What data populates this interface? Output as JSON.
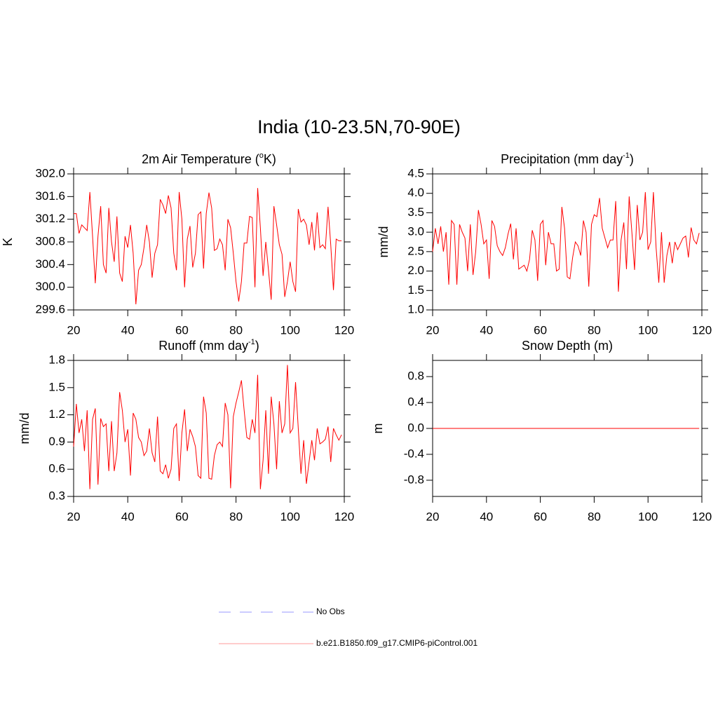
{
  "title": "India (10-23.5N,70-90E)",
  "legend": [
    {
      "name": "No Obs",
      "color": "#9999ff",
      "dash": true
    },
    {
      "name": "b.e21.B1850.f09_g17.CMIP6-piControl.001",
      "color": "#ff9999",
      "dash": false
    }
  ],
  "chart_data": [
    {
      "type": "line",
      "title": [
        "2m Air Temperature (",
        "o",
        "K)"
      ],
      "ylabel": "K",
      "color": "#ff0000",
      "xlim": [
        20,
        120
      ],
      "xticks": [
        20,
        40,
        60,
        80,
        100,
        120
      ],
      "ylim": [
        299.6,
        302.0
      ],
      "yticks": [
        {
          "value": 302.0,
          "label": "302.0"
        },
        301.6,
        301.2,
        300.8,
        300.4,
        {
          "value": 300.0,
          "label": "300.0"
        },
        299.6
      ],
      "x": [
        20,
        21,
        22,
        23,
        24,
        25,
        26,
        27,
        28,
        29,
        30,
        31,
        32,
        33,
        34,
        35,
        36,
        37,
        38,
        39,
        40,
        41,
        42,
        43,
        44,
        45,
        46,
        47,
        48,
        49,
        50,
        51,
        52,
        53,
        54,
        55,
        56,
        57,
        58,
        59,
        60,
        61,
        62,
        63,
        64,
        65,
        66,
        67,
        68,
        69,
        70,
        71,
        72,
        73,
        74,
        75,
        76,
        77,
        78,
        79,
        80,
        81,
        82,
        83,
        84,
        85,
        86,
        87,
        88,
        89,
        90,
        91,
        92,
        93,
        94,
        95,
        96,
        97,
        98,
        99,
        100,
        101,
        102,
        103,
        104,
        105,
        106,
        107,
        108,
        109,
        110,
        111,
        112,
        113,
        114,
        115,
        116,
        117,
        118,
        119
      ],
      "values": [
        301.3,
        301.3,
        300.95,
        301.1,
        301.05,
        301.0,
        301.68,
        300.9,
        300.07,
        300.9,
        301.43,
        300.4,
        300.25,
        301.4,
        300.8,
        300.45,
        301.25,
        300.25,
        300.1,
        300.9,
        300.7,
        301.1,
        300.6,
        299.7,
        300.3,
        300.4,
        300.7,
        301.1,
        300.8,
        300.17,
        300.6,
        300.75,
        301.55,
        301.45,
        301.3,
        301.62,
        301.4,
        300.6,
        300.3,
        301.68,
        301.2,
        300.0,
        300.85,
        301.08,
        300.35,
        300.6,
        301.28,
        301.33,
        300.33,
        301.3,
        301.67,
        301.4,
        300.65,
        300.68,
        300.85,
        300.75,
        300.3,
        301.2,
        301.05,
        300.6,
        300.1,
        299.75,
        300.1,
        300.78,
        300.78,
        301.25,
        301.23,
        300.0,
        301.75,
        301.05,
        300.2,
        300.8,
        300.3,
        299.78,
        301.43,
        301.1,
        300.75,
        300.58,
        299.83,
        300.1,
        300.45,
        300.1,
        299.92,
        301.38,
        301.15,
        301.2,
        301.1,
        300.75,
        301.15,
        300.65,
        301.32,
        300.7,
        300.75,
        300.68,
        301.42,
        300.75,
        299.95,
        300.85,
        300.82,
        300.82
      ]
    },
    {
      "type": "line",
      "title": [
        "Precipitation (mm day",
        "-1",
        ")"
      ],
      "ylabel": "mm/d",
      "color": "#ff0000",
      "xlim": [
        20,
        120
      ],
      "xticks": [
        20,
        40,
        60,
        80,
        100,
        120
      ],
      "ylim": [
        1.0,
        4.5
      ],
      "yticks": [
        4.5,
        {
          "value": 4.0,
          "label": "4.0"
        },
        3.5,
        {
          "value": 3.0,
          "label": "3.0"
        },
        2.5,
        {
          "value": 2.0,
          "label": "2.0"
        },
        1.5,
        {
          "value": 1.0,
          "label": "1.0"
        }
      ],
      "x": [
        20,
        21,
        22,
        23,
        24,
        25,
        26,
        27,
        28,
        29,
        30,
        31,
        32,
        33,
        34,
        35,
        36,
        37,
        38,
        39,
        40,
        41,
        42,
        43,
        44,
        45,
        46,
        47,
        48,
        49,
        50,
        51,
        52,
        53,
        54,
        55,
        56,
        57,
        58,
        59,
        60,
        61,
        62,
        63,
        64,
        65,
        66,
        67,
        68,
        69,
        70,
        71,
        72,
        73,
        74,
        75,
        76,
        77,
        78,
        79,
        80,
        81,
        82,
        83,
        84,
        85,
        86,
        87,
        88,
        89,
        90,
        91,
        92,
        93,
        94,
        95,
        96,
        97,
        98,
        99,
        100,
        101,
        102,
        103,
        104,
        105,
        106,
        107,
        108,
        109,
        110,
        111,
        112,
        113,
        114,
        115,
        116,
        117,
        118,
        119
      ],
      "values": [
        2.5,
        3.1,
        2.7,
        3.15,
        2.5,
        3.0,
        1.65,
        3.3,
        3.2,
        1.65,
        3.2,
        3.0,
        2.85,
        2.0,
        3.2,
        1.9,
        2.5,
        3.57,
        3.2,
        2.7,
        2.8,
        1.8,
        3.3,
        3.15,
        2.65,
        2.5,
        2.4,
        2.6,
        2.95,
        3.22,
        2.3,
        3.1,
        2.05,
        2.1,
        2.15,
        2.0,
        2.3,
        3.05,
        2.8,
        1.75,
        3.2,
        3.3,
        2.15,
        3.0,
        2.7,
        2.7,
        2.0,
        2.05,
        3.65,
        3.1,
        1.85,
        1.8,
        2.35,
        2.75,
        2.65,
        2.4,
        3.3,
        3.0,
        1.6,
        3.2,
        3.45,
        3.4,
        3.88,
        3.1,
        2.85,
        2.6,
        2.8,
        2.8,
        3.8,
        1.47,
        2.8,
        3.25,
        2.05,
        3.92,
        3.0,
        2.03,
        3.7,
        2.8,
        3.0,
        4.03,
        2.55,
        2.75,
        4.03,
        2.6,
        1.7,
        3.0,
        1.7,
        2.4,
        2.75,
        2.2,
        2.75,
        2.55,
        2.7,
        2.85,
        2.9,
        2.35,
        3.12,
        2.8,
        2.7,
        2.98
      ]
    },
    {
      "type": "line",
      "title": [
        "Runoff (mm day",
        "-1",
        ")"
      ],
      "ylabel": "mm/d",
      "color": "#ff0000",
      "xlim": [
        20,
        120
      ],
      "xticks": [
        20,
        40,
        60,
        80,
        100,
        120
      ],
      "ylim": [
        0.3,
        1.8
      ],
      "yticks": [
        1.8,
        1.5,
        1.2,
        0.9,
        0.6,
        0.3
      ],
      "x": [
        20,
        21,
        22,
        23,
        24,
        25,
        26,
        27,
        28,
        29,
        30,
        31,
        32,
        33,
        34,
        35,
        36,
        37,
        38,
        39,
        40,
        41,
        42,
        43,
        44,
        45,
        46,
        47,
        48,
        49,
        50,
        51,
        52,
        53,
        54,
        55,
        56,
        57,
        58,
        59,
        60,
        61,
        62,
        63,
        64,
        65,
        66,
        67,
        68,
        69,
        70,
        71,
        72,
        73,
        74,
        75,
        76,
        77,
        78,
        79,
        80,
        81,
        82,
        83,
        84,
        85,
        86,
        87,
        88,
        89,
        90,
        91,
        92,
        93,
        94,
        95,
        96,
        97,
        98,
        99,
        100,
        101,
        102,
        103,
        104,
        105,
        106,
        107,
        108,
        109,
        110,
        111,
        112,
        113,
        114,
        115,
        116,
        117,
        118,
        119
      ],
      "values": [
        0.85,
        1.32,
        1.0,
        1.15,
        0.8,
        1.25,
        0.38,
        1.15,
        1.27,
        0.43,
        1.16,
        1.07,
        1.1,
        0.58,
        1.13,
        0.58,
        0.78,
        1.45,
        1.25,
        0.9,
        1.04,
        0.53,
        1.22,
        1.15,
        0.95,
        0.9,
        0.75,
        0.8,
        1.05,
        0.78,
        0.68,
        1.18,
        0.58,
        0.55,
        0.65,
        0.5,
        0.6,
        1.05,
        1.1,
        0.47,
        1.0,
        1.26,
        0.8,
        1.04,
        0.96,
        0.85,
        0.53,
        0.5,
        1.4,
        1.22,
        0.5,
        0.49,
        0.75,
        0.87,
        0.9,
        0.85,
        1.33,
        1.2,
        0.39,
        1.18,
        1.33,
        1.45,
        1.58,
        1.25,
        0.95,
        0.93,
        1.15,
        1.0,
        1.64,
        0.38,
        0.7,
        1.25,
        0.55,
        1.4,
        1.1,
        0.6,
        1.35,
        1.0,
        1.1,
        1.75,
        1.0,
        1.05,
        1.56,
        1.05,
        0.55,
        0.92,
        0.44,
        0.68,
        0.92,
        0.7,
        1.05,
        0.88,
        0.9,
        0.93,
        1.07,
        0.68,
        1.05,
        0.98,
        0.92,
        0.98
      ]
    },
    {
      "type": "line",
      "title": [
        "Snow Depth (m)"
      ],
      "ylabel": "m",
      "color": "#ff0000",
      "xlim": [
        20,
        120
      ],
      "xticks": [
        20,
        40,
        60,
        80,
        100,
        120
      ],
      "ylim": [
        -1.05,
        1.05
      ],
      "yticks": [
        0.8,
        0.4,
        {
          "value": 0.0,
          "label": "0.0"
        },
        -0.4,
        -0.8
      ],
      "x": [
        20,
        21,
        22,
        23,
        24,
        25,
        26,
        27,
        28,
        29,
        30,
        31,
        32,
        33,
        34,
        35,
        36,
        37,
        38,
        39,
        40,
        41,
        42,
        43,
        44,
        45,
        46,
        47,
        48,
        49,
        50,
        51,
        52,
        53,
        54,
        55,
        56,
        57,
        58,
        59,
        60,
        61,
        62,
        63,
        64,
        65,
        66,
        67,
        68,
        69,
        70,
        71,
        72,
        73,
        74,
        75,
        76,
        77,
        78,
        79,
        80,
        81,
        82,
        83,
        84,
        85,
        86,
        87,
        88,
        89,
        90,
        91,
        92,
        93,
        94,
        95,
        96,
        97,
        98,
        99,
        100,
        101,
        102,
        103,
        104,
        105,
        106,
        107,
        108,
        109,
        110,
        111,
        112,
        113,
        114,
        115,
        116,
        117,
        118,
        119
      ],
      "values": [
        0,
        0,
        0,
        0,
        0,
        0,
        0,
        0,
        0,
        0,
        0,
        0,
        0,
        0,
        0,
        0,
        0,
        0,
        0,
        0,
        0,
        0,
        0,
        0,
        0,
        0,
        0,
        0,
        0,
        0,
        0,
        0,
        0,
        0,
        0,
        0,
        0,
        0,
        0,
        0,
        0,
        0,
        0,
        0,
        0,
        0,
        0,
        0,
        0,
        0,
        0,
        0,
        0,
        0,
        0,
        0,
        0,
        0,
        0,
        0,
        0,
        0,
        0,
        0,
        0,
        0,
        0,
        0,
        0,
        0,
        0,
        0,
        0,
        0,
        0,
        0,
        0,
        0,
        0,
        0,
        0,
        0,
        0,
        0,
        0,
        0,
        0,
        0,
        0,
        0,
        0,
        0,
        0,
        0,
        0,
        0,
        0,
        0,
        0,
        0
      ]
    }
  ]
}
